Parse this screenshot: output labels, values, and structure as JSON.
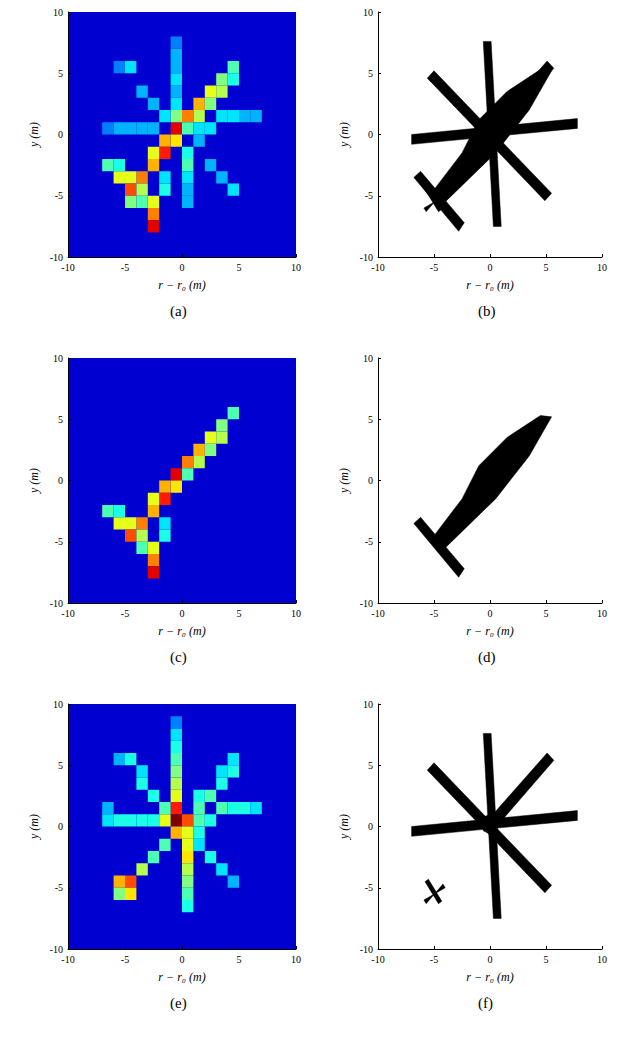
{
  "chart_data": [
    {
      "type": "heatmap",
      "caption": "(a)",
      "x_label": "r − r₀ (m)",
      "y_label": "y (m)",
      "xlim": [
        -10,
        10
      ],
      "ylim": [
        -10,
        10
      ],
      "xticks": [
        -10,
        -5,
        0,
        5,
        10
      ],
      "yticks": [
        -10,
        -5,
        0,
        5,
        10
      ],
      "zlim": [
        0,
        1
      ],
      "cell_size": 1,
      "cells": [
        [
          4.5,
          5.5,
          0.45
        ],
        [
          3.5,
          4.5,
          0.5
        ],
        [
          3.5,
          3.5,
          0.55
        ],
        [
          2.5,
          3.5,
          0.6
        ],
        [
          1.5,
          2.5,
          0.7
        ],
        [
          1.5,
          1.5,
          0.55
        ],
        [
          0.5,
          1.5,
          0.75
        ],
        [
          -0.5,
          0.5,
          0.9
        ],
        [
          -0.5,
          -0.5,
          0.65
        ],
        [
          -1.5,
          -0.5,
          0.7
        ],
        [
          -1.5,
          -1.5,
          0.85
        ],
        [
          -2.5,
          -1.5,
          0.6
        ],
        [
          -2.5,
          -2.5,
          0.7
        ],
        [
          -3.5,
          -3.5,
          0.75
        ],
        [
          -4.5,
          -3.5,
          0.6
        ],
        [
          -4.5,
          -4.5,
          0.8
        ],
        [
          -5.5,
          -3.5,
          0.6
        ],
        [
          -6.5,
          -2.5,
          0.45
        ],
        [
          -5.5,
          -2.5,
          0.4
        ],
        [
          -3.5,
          -4.5,
          0.55
        ],
        [
          -2.5,
          -5.5,
          0.6
        ],
        [
          -2.5,
          -6.5,
          0.75
        ],
        [
          -2.5,
          -7.5,
          0.9
        ],
        [
          -1.5,
          -4.5,
          0.4
        ],
        [
          -1.5,
          -3.5,
          0.35
        ],
        [
          -3.5,
          -5.5,
          0.45
        ],
        [
          0.5,
          0.5,
          0.45
        ],
        [
          2.5,
          2.5,
          0.5
        ],
        [
          -0.5,
          1.5,
          0.5
        ],
        [
          -0.5,
          2.5,
          0.35
        ],
        [
          -0.5,
          3.5,
          0.3
        ],
        [
          -0.5,
          4.5,
          0.35
        ],
        [
          -0.5,
          5.5,
          0.3
        ],
        [
          -0.5,
          6.5,
          0.3
        ],
        [
          -0.5,
          7.5,
          0.25
        ],
        [
          -1.5,
          1.5,
          0.35
        ],
        [
          -2.5,
          2.5,
          0.3
        ],
        [
          -3.5,
          3.5,
          0.3
        ],
        [
          -4.5,
          5.5,
          0.35
        ],
        [
          -5.5,
          5.5,
          0.25
        ],
        [
          -2.5,
          0.5,
          0.3
        ],
        [
          -3.5,
          0.5,
          0.3
        ],
        [
          -4.5,
          0.5,
          0.3
        ],
        [
          -5.5,
          0.5,
          0.3
        ],
        [
          -6.5,
          0.5,
          0.25
        ],
        [
          1.5,
          0.5,
          0.35
        ],
        [
          2.5,
          0.5,
          0.35
        ],
        [
          3.5,
          1.5,
          0.35
        ],
        [
          4.5,
          1.5,
          0.35
        ],
        [
          5.5,
          1.5,
          0.3
        ],
        [
          6.5,
          1.5,
          0.3
        ],
        [
          1.5,
          -0.5,
          0.3
        ],
        [
          2.5,
          -2.5,
          0.3
        ],
        [
          3.5,
          -3.5,
          0.3
        ],
        [
          4.5,
          -4.5,
          0.35
        ],
        [
          0.5,
          -1.5,
          0.4
        ],
        [
          0.5,
          -2.5,
          0.45
        ],
        [
          0.5,
          -3.5,
          0.35
        ],
        [
          0.5,
          -4.5,
          0.3
        ],
        [
          0.5,
          -5.5,
          0.3
        ],
        [
          4.5,
          4.5,
          0.4
        ],
        [
          -4.5,
          -5.5,
          0.5
        ]
      ]
    },
    {
      "type": "polygon",
      "caption": "(b)",
      "x_label": "r − r₀ (m)",
      "y_label": "y (m)",
      "xlim": [
        -10,
        10
      ],
      "ylim": [
        -10,
        10
      ],
      "xticks": [
        -10,
        -5,
        0,
        5,
        10
      ],
      "yticks": [
        -10,
        -5,
        0,
        5,
        10
      ],
      "color": "#000000",
      "polygons": [
        [
          [
            -5,
            -4.5
          ],
          [
            -4,
            -5.5
          ],
          [
            0.5,
            -1.5
          ],
          [
            3.5,
            2
          ],
          [
            5.5,
            5.2
          ],
          [
            4.5,
            5.3
          ],
          [
            1.5,
            3.5
          ],
          [
            -1,
            1.2
          ],
          [
            -2.5,
            -1.5
          ]
        ],
        [
          [
            -6.8,
            -3.5
          ],
          [
            -6.2,
            -3
          ],
          [
            -2.3,
            -7.2
          ],
          [
            -2.8,
            -7.9
          ]
        ],
        [
          [
            -0.6,
            7.6
          ],
          [
            0.1,
            7.6
          ],
          [
            1,
            -7.5
          ],
          [
            0.3,
            -7.5
          ]
        ],
        [
          [
            -7,
            -0.8
          ],
          [
            -7,
            0
          ],
          [
            7.8,
            1.3
          ],
          [
            7.8,
            0.5
          ]
        ],
        [
          [
            -5.6,
            4.6
          ],
          [
            -5,
            5.2
          ],
          [
            5.5,
            -4.8
          ],
          [
            4.9,
            -5.4
          ]
        ],
        [
          [
            -0.3,
            0.4
          ],
          [
            0.3,
            -0.3
          ],
          [
            5.7,
            5.4
          ],
          [
            5.1,
            6
          ]
        ],
        [
          [
            0.8,
            0.2
          ],
          [
            0.57,
            0.77
          ],
          [
            0,
            1
          ],
          [
            -0.57,
            0.77
          ],
          [
            -0.8,
            0.2
          ],
          [
            -0.57,
            -0.37
          ],
          [
            0,
            -0.6
          ],
          [
            0.57,
            -0.37
          ]
        ],
        [
          [
            -5.8,
            -4.5
          ],
          [
            -5.5,
            -4.3
          ],
          [
            -4.3,
            -6.1
          ],
          [
            -4.6,
            -6.3
          ]
        ],
        [
          [
            -5.9,
            -6
          ],
          [
            -5.7,
            -6.3
          ],
          [
            -4.2,
            -4.7
          ],
          [
            -4,
            -5
          ]
        ]
      ]
    },
    {
      "type": "heatmap",
      "caption": "(c)",
      "x_label": "r − r₀ (m)",
      "y_label": "y (m)",
      "xlim": [
        -10,
        10
      ],
      "ylim": [
        -10,
        10
      ],
      "xticks": [
        -10,
        -5,
        0,
        5,
        10
      ],
      "yticks": [
        -10,
        -5,
        0,
        5,
        10
      ],
      "zlim": [
        0,
        1
      ],
      "cell_size": 1,
      "cells": [
        [
          4.5,
          5.5,
          0.45
        ],
        [
          3.5,
          4.5,
          0.5
        ],
        [
          3.5,
          3.5,
          0.55
        ],
        [
          2.5,
          3.5,
          0.6
        ],
        [
          1.5,
          2.5,
          0.7
        ],
        [
          1.5,
          1.5,
          0.55
        ],
        [
          0.5,
          1.5,
          0.75
        ],
        [
          -0.5,
          0.5,
          0.9
        ],
        [
          -0.5,
          -0.5,
          0.65
        ],
        [
          -1.5,
          -0.5,
          0.7
        ],
        [
          -1.5,
          -1.5,
          0.85
        ],
        [
          -2.5,
          -1.5,
          0.6
        ],
        [
          -2.5,
          -2.5,
          0.7
        ],
        [
          -3.5,
          -3.5,
          0.75
        ],
        [
          -4.5,
          -3.5,
          0.6
        ],
        [
          -4.5,
          -4.5,
          0.8
        ],
        [
          -5.5,
          -3.5,
          0.6
        ],
        [
          -6.5,
          -2.5,
          0.45
        ],
        [
          -5.5,
          -2.5,
          0.4
        ],
        [
          -3.5,
          -4.5,
          0.55
        ],
        [
          -2.5,
          -5.5,
          0.6
        ],
        [
          -2.5,
          -6.5,
          0.75
        ],
        [
          -2.5,
          -7.5,
          0.9
        ],
        [
          -1.5,
          -4.5,
          0.4
        ],
        [
          -1.5,
          -3.5,
          0.35
        ],
        [
          -3.5,
          -5.5,
          0.45
        ],
        [
          0.5,
          0.5,
          0.45
        ],
        [
          2.5,
          2.5,
          0.5
        ]
      ]
    },
    {
      "type": "polygon",
      "caption": "(d)",
      "x_label": "r − r₀ (m)",
      "y_label": "y (m)",
      "xlim": [
        -10,
        10
      ],
      "ylim": [
        -10,
        10
      ],
      "xticks": [
        -10,
        -5,
        0,
        5,
        10
      ],
      "yticks": [
        -10,
        -5,
        0,
        5,
        10
      ],
      "color": "#000000",
      "polygons": [
        [
          [
            -5,
            -4.5
          ],
          [
            -4,
            -5.5
          ],
          [
            0.5,
            -1.5
          ],
          [
            3.5,
            2
          ],
          [
            5.5,
            5.2
          ],
          [
            4.5,
            5.3
          ],
          [
            1.5,
            3.5
          ],
          [
            -1,
            1.2
          ],
          [
            -2.5,
            -1.5
          ]
        ],
        [
          [
            -6.8,
            -3.5
          ],
          [
            -6.2,
            -3
          ],
          [
            -2.3,
            -7.2
          ],
          [
            -2.8,
            -7.9
          ]
        ]
      ]
    },
    {
      "type": "heatmap",
      "caption": "(e)",
      "x_label": "r − r₀ (m)",
      "y_label": "y (m)",
      "xlim": [
        -10,
        10
      ],
      "ylim": [
        -10,
        10
      ],
      "xticks": [
        -10,
        -5,
        0,
        5,
        10
      ],
      "yticks": [
        -10,
        -5,
        0,
        5,
        10
      ],
      "zlim": [
        0,
        1
      ],
      "cell_size": 1,
      "cells": [
        [
          -0.5,
          0.5,
          1.0
        ],
        [
          -0.5,
          1.5,
          0.85
        ],
        [
          0.5,
          0.5,
          0.8
        ],
        [
          -1.5,
          0.5,
          0.6
        ],
        [
          0.5,
          -0.5,
          0.6
        ],
        [
          -0.5,
          -0.5,
          0.7
        ],
        [
          -0.5,
          2.5,
          0.6
        ],
        [
          -0.5,
          3.5,
          0.55
        ],
        [
          -0.5,
          4.5,
          0.5
        ],
        [
          -0.5,
          5.5,
          0.45
        ],
        [
          -0.5,
          6.5,
          0.4
        ],
        [
          -0.5,
          7.5,
          0.35
        ],
        [
          -0.5,
          8.5,
          0.25
        ],
        [
          1.5,
          1.5,
          0.45
        ],
        [
          1.5,
          2.5,
          0.4
        ],
        [
          2.5,
          2.5,
          0.45
        ],
        [
          3.5,
          3.5,
          0.4
        ],
        [
          3.5,
          4.5,
          0.35
        ],
        [
          4.5,
          4.5,
          0.4
        ],
        [
          4.5,
          5.5,
          0.35
        ],
        [
          1.5,
          0.5,
          0.45
        ],
        [
          2.5,
          0.5,
          0.4
        ],
        [
          3.5,
          1.5,
          0.45
        ],
        [
          4.5,
          1.5,
          0.4
        ],
        [
          5.5,
          1.5,
          0.4
        ],
        [
          6.5,
          1.5,
          0.35
        ],
        [
          1.5,
          -0.5,
          0.4
        ],
        [
          1.5,
          -1.5,
          0.35
        ],
        [
          2.5,
          -2.5,
          0.4
        ],
        [
          3.5,
          -3.5,
          0.35
        ],
        [
          4.5,
          -4.5,
          0.3
        ],
        [
          0.5,
          -1.5,
          0.6
        ],
        [
          0.5,
          -2.5,
          0.65
        ],
        [
          0.5,
          -3.5,
          0.55
        ],
        [
          0.5,
          -4.5,
          0.5
        ],
        [
          0.5,
          -5.5,
          0.45
        ],
        [
          0.5,
          -6.5,
          0.4
        ],
        [
          -1.5,
          -1.5,
          0.45
        ],
        [
          -2.5,
          -2.5,
          0.45
        ],
        [
          -3.5,
          -3.5,
          0.55
        ],
        [
          -4.5,
          -4.5,
          0.8
        ],
        [
          -5.5,
          -4.5,
          0.7
        ],
        [
          -4.5,
          -5.5,
          0.65
        ],
        [
          -5.5,
          -5.5,
          0.5
        ],
        [
          -2.5,
          0.5,
          0.4
        ],
        [
          -3.5,
          0.5,
          0.4
        ],
        [
          -4.5,
          0.5,
          0.4
        ],
        [
          -5.5,
          0.5,
          0.4
        ],
        [
          -6.5,
          0.5,
          0.35
        ],
        [
          -6.5,
          1.5,
          0.3
        ],
        [
          -1.5,
          1.5,
          0.45
        ],
        [
          -2.5,
          2.5,
          0.4
        ],
        [
          -3.5,
          3.5,
          0.4
        ],
        [
          -3.5,
          4.5,
          0.35
        ],
        [
          -4.5,
          5.5,
          0.4
        ],
        [
          -5.5,
          5.5,
          0.3
        ]
      ]
    },
    {
      "type": "polygon",
      "caption": "(f)",
      "x_label": "r − r₀ (m)",
      "y_label": "y (m)",
      "xlim": [
        -10,
        10
      ],
      "ylim": [
        -10,
        10
      ],
      "xticks": [
        -10,
        -5,
        0,
        5,
        10
      ],
      "yticks": [
        -10,
        -5,
        0,
        5,
        10
      ],
      "color": "#000000",
      "polygons": [
        [
          [
            -0.6,
            7.6
          ],
          [
            0.1,
            7.6
          ],
          [
            1,
            -7.5
          ],
          [
            0.3,
            -7.5
          ]
        ],
        [
          [
            -7,
            -0.8
          ],
          [
            -7,
            0
          ],
          [
            7.8,
            1.3
          ],
          [
            7.8,
            0.5
          ]
        ],
        [
          [
            -5.6,
            4.6
          ],
          [
            -5,
            5.2
          ],
          [
            5.5,
            -4.8
          ],
          [
            4.9,
            -5.4
          ]
        ],
        [
          [
            -0.3,
            0.4
          ],
          [
            0.3,
            -0.3
          ],
          [
            5.7,
            5.4
          ],
          [
            5.1,
            6
          ]
        ],
        [
          [
            0.8,
            0.2
          ],
          [
            0.57,
            0.77
          ],
          [
            0,
            1
          ],
          [
            -0.57,
            0.77
          ],
          [
            -0.8,
            0.2
          ],
          [
            -0.57,
            -0.37
          ],
          [
            0,
            -0.6
          ],
          [
            0.57,
            -0.37
          ]
        ],
        [
          [
            -5.8,
            -4.5
          ],
          [
            -5.5,
            -4.3
          ],
          [
            -4.3,
            -6.1
          ],
          [
            -4.6,
            -6.3
          ]
        ],
        [
          [
            -5.9,
            -6
          ],
          [
            -5.7,
            -6.3
          ],
          [
            -4.2,
            -4.7
          ],
          [
            -4,
            -5
          ]
        ]
      ]
    }
  ]
}
